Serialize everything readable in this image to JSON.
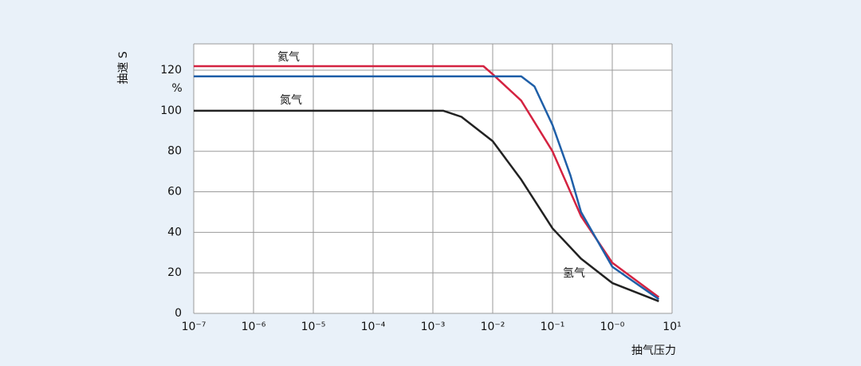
{
  "chart_data": {
    "type": "line",
    "y_label": "抽速 S",
    "y_unit": "%",
    "x_label": "抽气压力",
    "xlim": [
      1e-07,
      10
    ],
    "log_x": true,
    "xticks": [
      {
        "value": 1e-07,
        "label": "10⁻⁷"
      },
      {
        "value": 1e-06,
        "label": "10⁻⁶"
      },
      {
        "value": 1e-05,
        "label": "10⁻⁵"
      },
      {
        "value": 0.0001,
        "label": "10⁻⁴"
      },
      {
        "value": 0.001,
        "label": "10⁻³"
      },
      {
        "value": 0.01,
        "label": "10⁻²"
      },
      {
        "value": 0.1,
        "label": "10⁻¹"
      },
      {
        "value": 1,
        "label": "10⁻⁰"
      },
      {
        "value": 10,
        "label": "10¹"
      }
    ],
    "ylim": [
      0,
      133
    ],
    "yticks": [
      0,
      20,
      40,
      60,
      80,
      100,
      120
    ],
    "grid": true,
    "series": [
      {
        "name": "氦气",
        "color": "#d42341",
        "x": [
          1e-07,
          0.001,
          0.007,
          0.01,
          0.03,
          0.1,
          0.3,
          1,
          6
        ],
        "values": [
          122,
          122,
          122,
          118,
          105,
          80,
          48,
          25,
          8
        ]
      },
      {
        "name": "氮气",
        "color": "#222222",
        "x": [
          1e-07,
          0.0015,
          0.003,
          0.01,
          0.03,
          0.1,
          0.3,
          1,
          6
        ],
        "values": [
          100,
          100,
          97,
          85,
          66,
          42,
          27,
          15,
          6
        ]
      },
      {
        "name": "氢气",
        "color": "#1f5fa8",
        "x": [
          1e-07,
          0.001,
          0.03,
          0.05,
          0.1,
          0.2,
          0.3,
          1,
          6
        ],
        "values": [
          117,
          117,
          117,
          112,
          93,
          68,
          50,
          23,
          7
        ]
      }
    ]
  }
}
